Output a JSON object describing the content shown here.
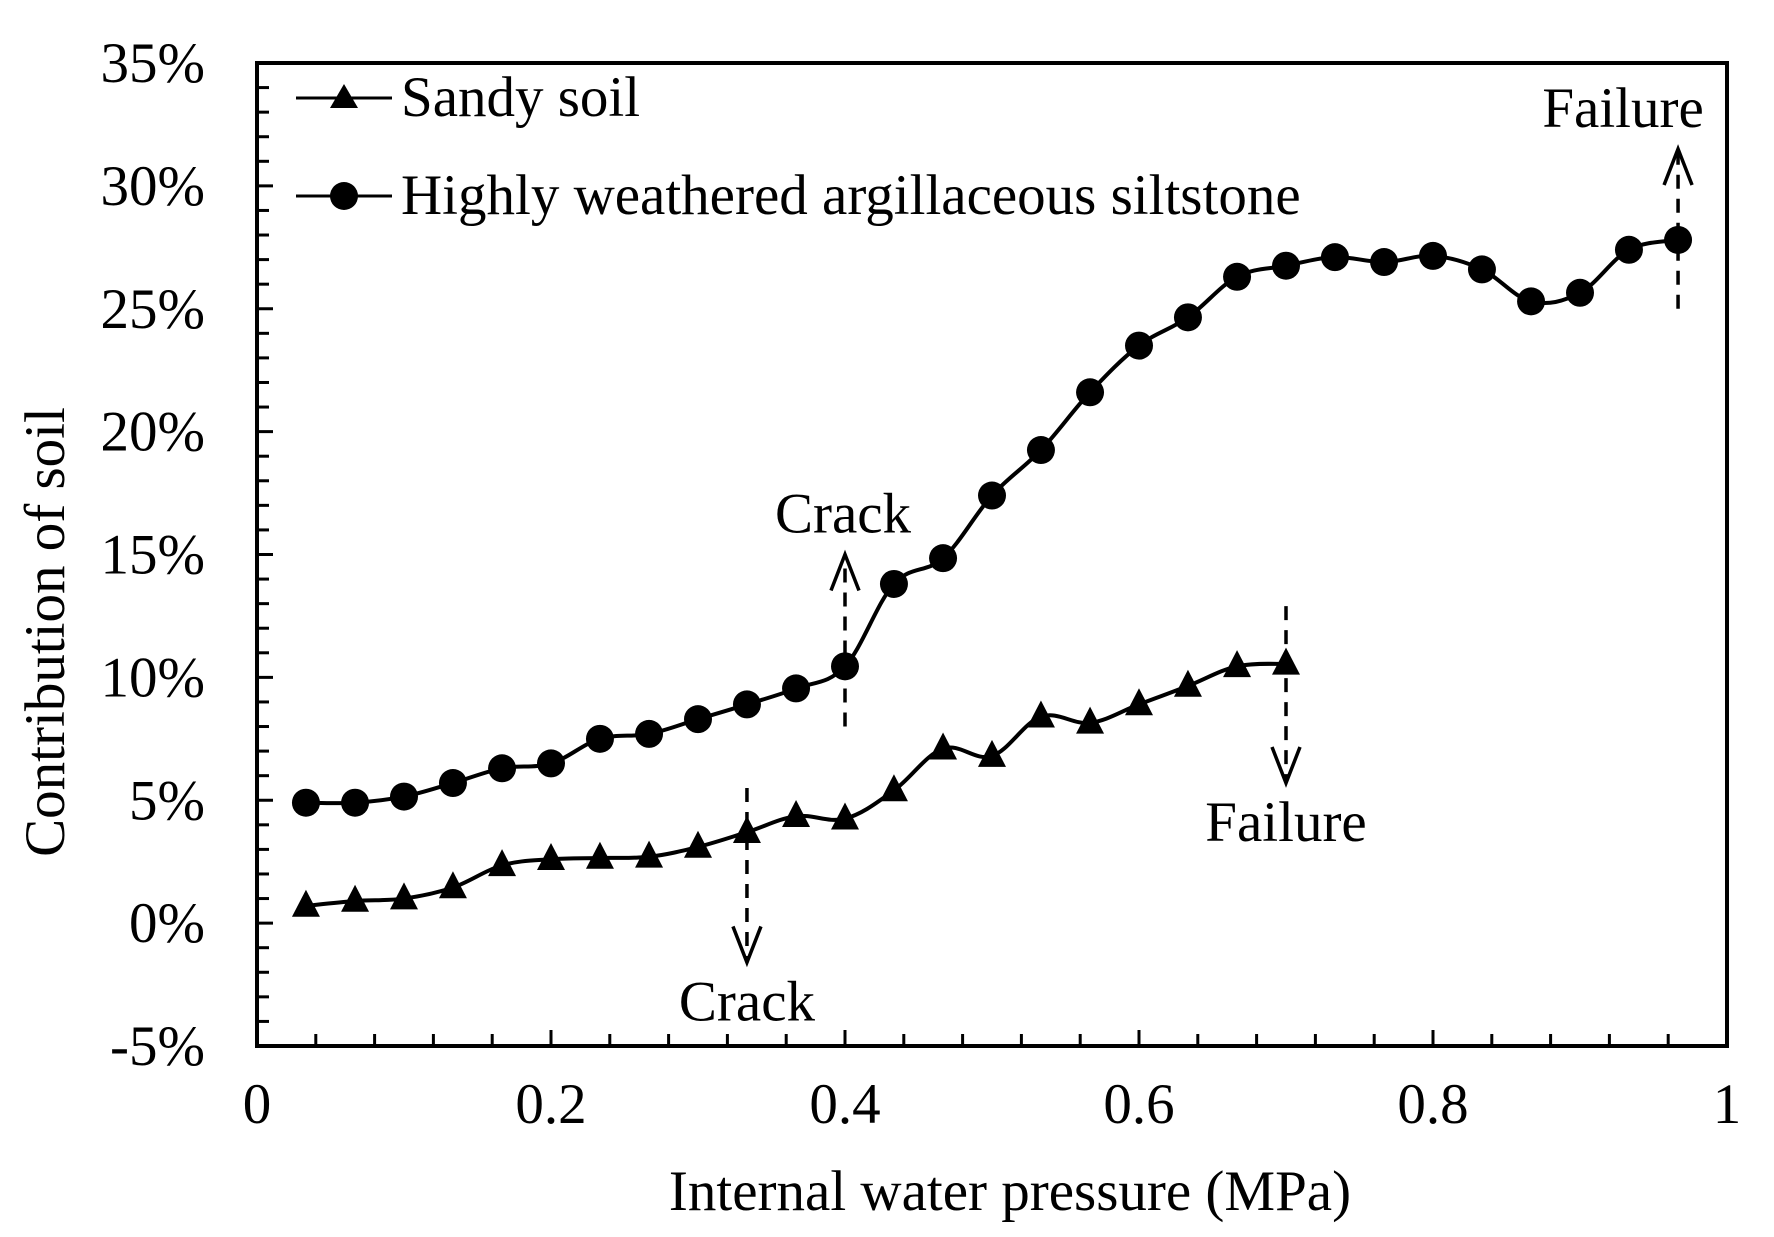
{
  "chart_data": {
    "type": "line",
    "title": "",
    "xlabel": "Internal water pressure (MPa)",
    "ylabel": "Contribution of soil",
    "xlim": [
      0,
      1
    ],
    "ylim": [
      -5,
      35
    ],
    "x_ticks": [
      0,
      0.2,
      0.4,
      0.6,
      0.8,
      1
    ],
    "x_tick_labels": [
      "0",
      "0.2",
      "0.4",
      "0.6",
      "0.8",
      "1"
    ],
    "x_minor_step": 0.04,
    "y_ticks": [
      -5,
      0,
      5,
      10,
      15,
      20,
      25,
      30,
      35
    ],
    "y_tick_labels": [
      "-5%",
      "0%",
      "5%",
      "10%",
      "15%",
      "20%",
      "25%",
      "30%",
      "35%"
    ],
    "y_minor_step": 1,
    "grid": false,
    "legend_position": "top-left",
    "colors": {
      "line": "#000000",
      "background": "#ffffff"
    },
    "series": [
      {
        "name": "Sandy soil",
        "marker": "triangle",
        "x": [
          0.0333,
          0.0667,
          0.1,
          0.1333,
          0.1667,
          0.2,
          0.2333,
          0.2667,
          0.3,
          0.3333,
          0.3667,
          0.4,
          0.4333,
          0.4667,
          0.5,
          0.5333,
          0.5667,
          0.6,
          0.6333,
          0.6667,
          0.7
        ],
        "values": [
          0.7,
          0.9,
          1.0,
          1.45,
          2.35,
          2.6,
          2.65,
          2.7,
          3.1,
          3.7,
          4.35,
          4.25,
          5.4,
          7.1,
          6.8,
          8.4,
          8.15,
          8.9,
          9.65,
          10.45,
          10.55
        ]
      },
      {
        "name": "Highly weathered argillaceous siltstone",
        "marker": "circle",
        "x": [
          0.0333,
          0.0667,
          0.1,
          0.1333,
          0.1667,
          0.2,
          0.2333,
          0.2667,
          0.3,
          0.3333,
          0.3667,
          0.4,
          0.4333,
          0.4667,
          0.5,
          0.5333,
          0.5667,
          0.6,
          0.6333,
          0.6667,
          0.7,
          0.7333,
          0.7667,
          0.8,
          0.8333,
          0.8667,
          0.9,
          0.9333,
          0.9667
        ],
        "values": [
          4.9,
          4.9,
          5.15,
          5.7,
          6.3,
          6.5,
          7.5,
          7.7,
          8.3,
          8.9,
          9.55,
          10.45,
          13.8,
          14.85,
          17.4,
          19.25,
          21.6,
          23.5,
          24.65,
          26.3,
          26.75,
          27.1,
          26.9,
          27.15,
          26.6,
          25.3,
          25.65,
          27.4,
          27.8
        ]
      }
    ],
    "annotations": [
      {
        "text": "Crack",
        "series": "Highly weathered argillaceous siltstone",
        "x": 0.4,
        "direction": "up",
        "from_y": 8,
        "to_y": 15
      },
      {
        "text": "Failure",
        "series": "Highly weathered argillaceous siltstone",
        "x": 0.9667,
        "direction": "up",
        "from_y": 25,
        "to_y": 31.5
      },
      {
        "text": "Crack",
        "series": "Sandy soil",
        "x": 0.3333,
        "direction": "down",
        "from_y": 5.5,
        "to_y": -1.6
      },
      {
        "text": "Failure",
        "series": "Sandy soil",
        "x": 0.7,
        "direction": "down",
        "from_y": 12.9,
        "to_y": 5.7
      }
    ]
  }
}
